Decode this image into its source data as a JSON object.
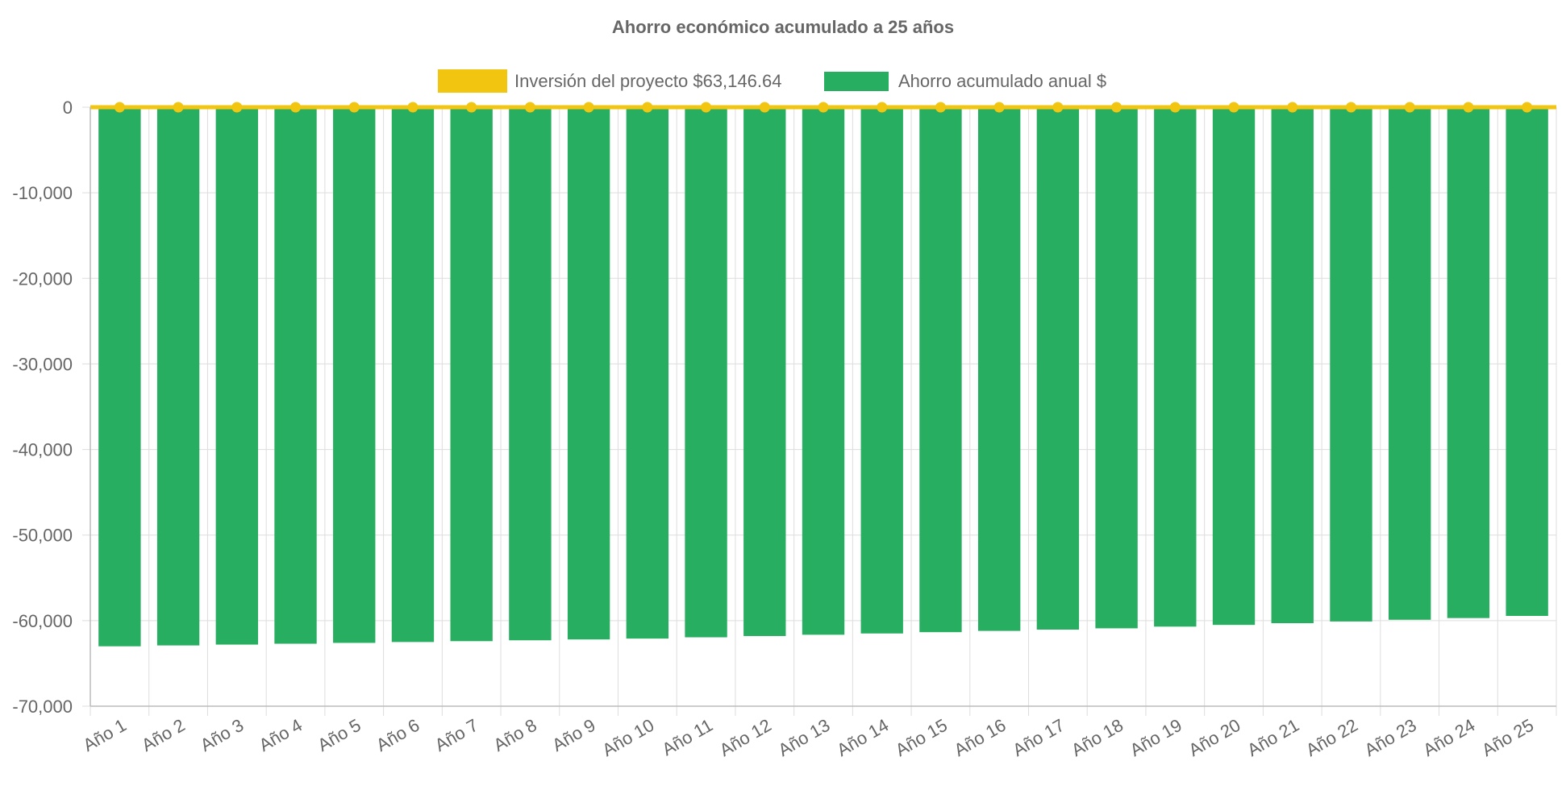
{
  "chart_data": {
    "type": "bar",
    "title": "Ahorro económico acumulado a 25 años",
    "categories": [
      "Año 1",
      "Año 2",
      "Año 3",
      "Año 4",
      "Año 5",
      "Año 6",
      "Año 7",
      "Año 8",
      "Año 9",
      "Año 10",
      "Año 11",
      "Año 12",
      "Año 13",
      "Año 14",
      "Año 15",
      "Año 16",
      "Año 17",
      "Año 18",
      "Año 19",
      "Año 20",
      "Año 21",
      "Año 22",
      "Año 23",
      "Año 24",
      "Año 25"
    ],
    "series": [
      {
        "name": "Inversión del proyecto $63,146.64",
        "kind": "line",
        "color": "#f2c511",
        "values": [
          0,
          0,
          0,
          0,
          0,
          0,
          0,
          0,
          0,
          0,
          0,
          0,
          0,
          0,
          0,
          0,
          0,
          0,
          0,
          0,
          0,
          0,
          0,
          0,
          0
        ]
      },
      {
        "name": "Ahorro acumulado anual $",
        "kind": "bar",
        "color": "#27ae60",
        "values": [
          -63000,
          -62900,
          -62800,
          -62700,
          -62600,
          -62500,
          -62400,
          -62300,
          -62200,
          -62100,
          -61950,
          -61800,
          -61650,
          -61500,
          -61350,
          -61200,
          -61050,
          -60900,
          -60700,
          -60500,
          -60300,
          -60100,
          -59900,
          -59700,
          -59450
        ]
      }
    ],
    "yticks": [
      "0",
      "-10,000",
      "-20,000",
      "-30,000",
      "-40,000",
      "-50,000",
      "-60,000",
      "-70,000"
    ],
    "ylim": [
      -70000,
      0
    ],
    "xlabel": "",
    "ylabel": "",
    "legend_position": "top-center",
    "grid": true
  }
}
